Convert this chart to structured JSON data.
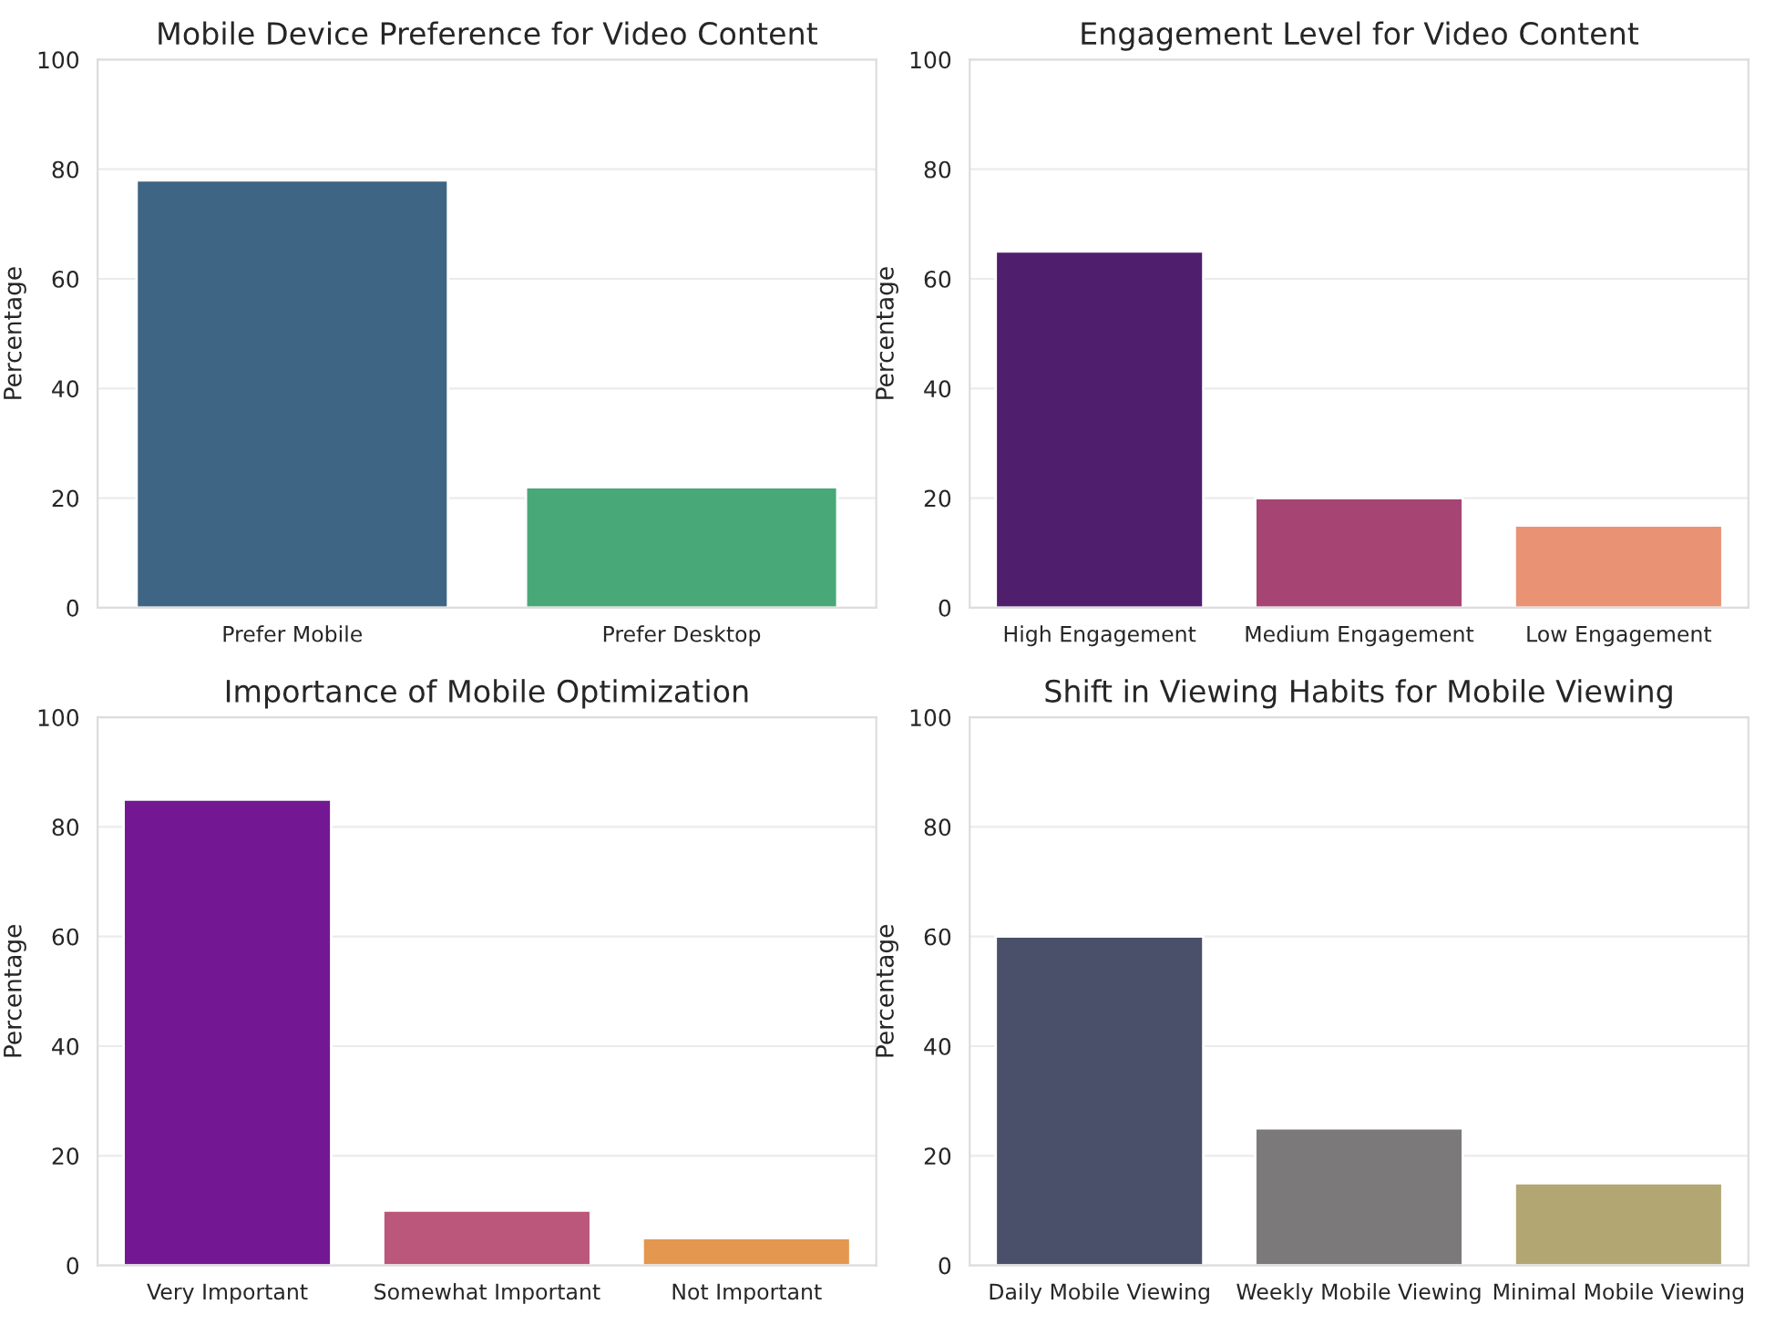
{
  "chart_data": [
    {
      "type": "bar",
      "title": "Mobile Device Preference for Video Content",
      "ylabel": "Percentage",
      "categories": [
        "Prefer Mobile",
        "Prefer Desktop"
      ],
      "values": [
        78,
        22
      ],
      "colors": [
        "#3e6583",
        "#48a878"
      ],
      "ylim": [
        0,
        100
      ],
      "yticks": [
        0,
        20,
        40,
        60,
        80,
        100
      ],
      "grid": "y"
    },
    {
      "type": "bar",
      "title": "Engagement Level for Video Content",
      "ylabel": "Percentage",
      "categories": [
        "High Engagement",
        "Medium Engagement",
        "Low Engagement"
      ],
      "values": [
        65,
        20,
        15
      ],
      "colors": [
        "#4f1f6e",
        "#a64574",
        "#e99274"
      ],
      "ylim": [
        0,
        100
      ],
      "yticks": [
        0,
        20,
        40,
        60,
        80,
        100
      ],
      "grid": "y"
    },
    {
      "type": "bar",
      "title": "Importance of Mobile Optimization",
      "ylabel": "Percentage",
      "categories": [
        "Very Important",
        "Somewhat Important",
        "Not Important"
      ],
      "values": [
        85,
        10,
        5
      ],
      "colors": [
        "#731892",
        "#bb577a",
        "#e3974f"
      ],
      "ylim": [
        0,
        100
      ],
      "yticks": [
        0,
        20,
        40,
        60,
        80,
        100
      ],
      "grid": "y"
    },
    {
      "type": "bar",
      "title": "Shift in Viewing Habits for Mobile Viewing",
      "ylabel": "Percentage",
      "categories": [
        "Daily Mobile Viewing",
        "Weekly Mobile Viewing",
        "Minimal Mobile Viewing"
      ],
      "values": [
        60,
        25,
        15
      ],
      "colors": [
        "#4a5069",
        "#7b7979",
        "#b2a673"
      ],
      "ylim": [
        0,
        100
      ],
      "yticks": [
        0,
        20,
        40,
        60,
        80,
        100
      ],
      "grid": "y"
    }
  ]
}
